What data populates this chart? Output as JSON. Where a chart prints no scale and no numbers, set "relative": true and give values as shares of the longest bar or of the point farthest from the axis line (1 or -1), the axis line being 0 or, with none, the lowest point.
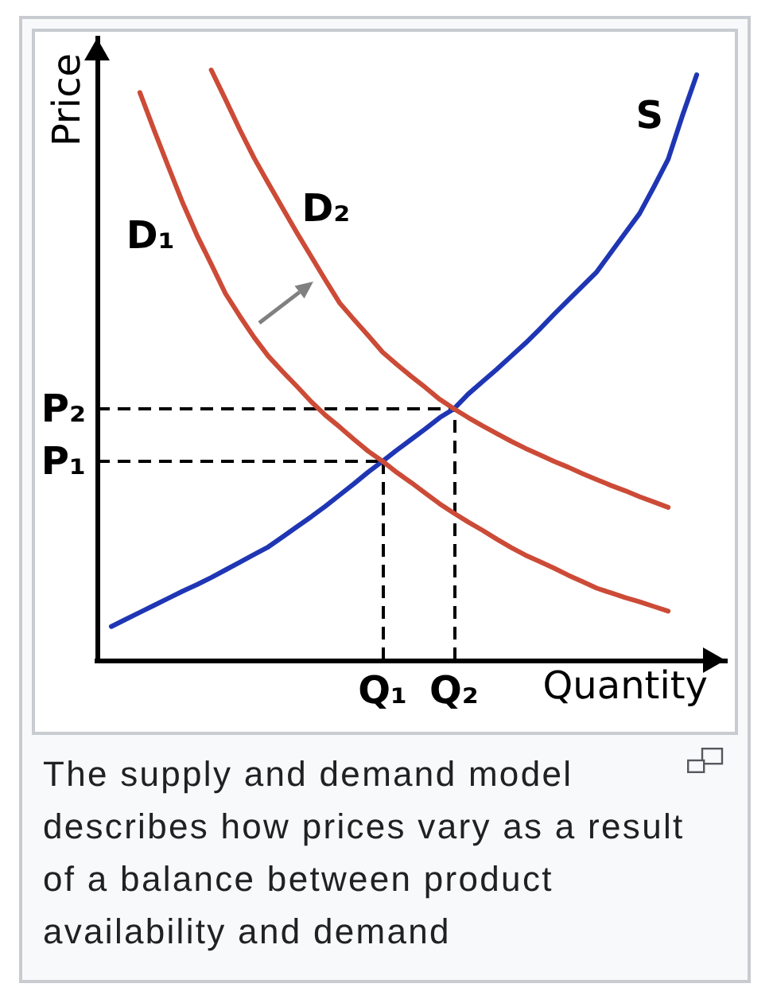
{
  "chart_data": {
    "type": "line",
    "relative": true,
    "xlabel": "Quantity",
    "ylabel": "Price",
    "marker": "none",
    "categories": [
      null,
      null,
      null,
      null,
      null,
      null,
      null,
      null,
      null,
      null,
      null,
      null,
      null,
      null,
      null,
      null,
      null,
      null,
      null,
      null,
      "Q₁",
      null,
      null,
      null,
      null,
      "Q₂",
      null,
      null,
      null,
      null,
      null,
      null,
      null,
      null,
      null,
      null,
      null,
      null,
      null,
      null,
      null,
      null,
      null,
      null,
      null
    ],
    "series": [
      {
        "name": "S",
        "color": "#1f36b4",
        "values": [
          null,
          0.057,
          0.069,
          0.081,
          0.093,
          0.105,
          0.117,
          0.128,
          0.14,
          0.153,
          0.166,
          0.179,
          0.192,
          0.209,
          0.226,
          0.243,
          0.261,
          0.28,
          0.299,
          0.319,
          0.337,
          0.356,
          0.374,
          0.392,
          0.411,
          0.426,
          0.451,
          0.472,
          0.493,
          0.515,
          0.537,
          0.561,
          0.586,
          0.61,
          0.634,
          0.658,
          0.691,
          0.724,
          0.757,
          0.802,
          0.849,
          0.923,
          0.992,
          null,
          null
        ]
      },
      {
        "name": "D₁",
        "color": "#cc4b37",
        "values": [
          null,
          null,
          null,
          0.962,
          0.898,
          0.836,
          0.775,
          0.72,
          0.671,
          0.621,
          0.583,
          0.547,
          0.515,
          0.489,
          0.464,
          0.438,
          0.415,
          0.395,
          0.374,
          0.354,
          0.337,
          0.318,
          0.301,
          0.283,
          0.265,
          0.249,
          0.234,
          0.22,
          0.205,
          0.191,
          0.178,
          0.167,
          0.156,
          0.144,
          0.133,
          0.122,
          0.114,
          0.106,
          0.099,
          0.091,
          0.083,
          null,
          null,
          null,
          null
        ]
      },
      {
        "name": "D₂",
        "color": "#cc4b37",
        "values": [
          null,
          null,
          null,
          null,
          null,
          null,
          null,
          null,
          1.0,
          0.95,
          0.899,
          0.851,
          0.808,
          0.766,
          0.724,
          0.684,
          0.644,
          0.605,
          0.577,
          0.55,
          0.522,
          0.501,
          0.481,
          0.462,
          0.442,
          0.426,
          0.411,
          0.397,
          0.384,
          0.371,
          0.359,
          0.348,
          0.337,
          0.327,
          0.316,
          0.306,
          0.296,
          0.287,
          0.277,
          0.268,
          0.259,
          null,
          null,
          null,
          null
        ]
      }
    ],
    "ref_lines": [
      {
        "axis": "y",
        "value": 0.337,
        "label": "P₁",
        "color": "#000000",
        "line_style": "dashed"
      },
      {
        "axis": "y",
        "value": 0.426,
        "label": "P₂",
        "color": "#000000",
        "line_style": "dashed"
      },
      {
        "axis": "x",
        "value": "Q₁",
        "color": "#000000",
        "line_style": "dashed"
      },
      {
        "axis": "x",
        "value": "Q₂",
        "color": "#000000",
        "line_style": "dashed"
      }
    ],
    "annotations": [
      "The supply and demand model describes how prices vary as a result of a balance between product availability and demand"
    ]
  }
}
